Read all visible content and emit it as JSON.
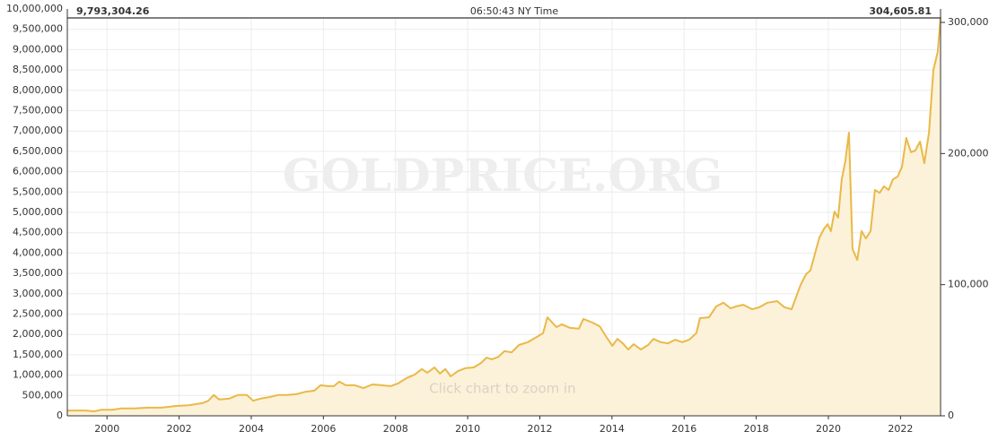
{
  "chart_data": {
    "type": "area",
    "header_left": "9,793,304.26",
    "header_center": "06:50:43 NY Time",
    "header_right": "304,605.81",
    "watermark": "GOLDPRICE.ORG",
    "hint": "Click chart to zoom in",
    "color": "#e9b949",
    "fill": "#fcf2d9",
    "grid": true,
    "x": [
      1998.91,
      1999.4,
      1999.65,
      1999.85,
      2000.15,
      2000.4,
      2000.77,
      2001.14,
      2001.52,
      2001.89,
      2002.26,
      2002.64,
      2002.81,
      2002.96,
      2003.11,
      2003.38,
      2003.63,
      2003.88,
      2004.05,
      2004.25,
      2004.5,
      2004.75,
      2005.0,
      2005.25,
      2005.5,
      2005.75,
      2005.92,
      2006.12,
      2006.29,
      2006.44,
      2006.62,
      2006.87,
      2007.11,
      2007.36,
      2007.61,
      2007.86,
      2008.06,
      2008.31,
      2008.53,
      2008.73,
      2008.88,
      2009.08,
      2009.23,
      2009.38,
      2009.53,
      2009.73,
      2009.93,
      2010.17,
      2010.37,
      2010.52,
      2010.67,
      2010.85,
      2011.02,
      2011.22,
      2011.42,
      2011.67,
      2011.92,
      2012.09,
      2012.21,
      2012.46,
      2012.61,
      2012.84,
      2013.08,
      2013.21,
      2013.46,
      2013.66,
      2013.83,
      2014.01,
      2014.15,
      2014.3,
      2014.45,
      2014.6,
      2014.8,
      2015.0,
      2015.15,
      2015.35,
      2015.55,
      2015.75,
      2015.95,
      2016.14,
      2016.34,
      2016.44,
      2016.69,
      2016.89,
      2017.09,
      2017.29,
      2017.44,
      2017.64,
      2017.89,
      2018.09,
      2018.31,
      2018.58,
      2018.78,
      2018.98,
      2019.23,
      2019.38,
      2019.5,
      2019.63,
      2019.75,
      2019.88,
      2019.98,
      2020.07,
      2020.17,
      2020.27,
      2020.37,
      2020.47,
      2020.57,
      2020.67,
      2020.8,
      2020.92,
      2021.04,
      2021.17,
      2021.29,
      2021.42,
      2021.54,
      2021.67,
      2021.79,
      2021.92,
      2022.04,
      2022.16,
      2022.29,
      2022.41,
      2022.54,
      2022.66,
      2022.79,
      2022.91,
      2023.03,
      2023.11
    ],
    "values": [
      130000,
      130000,
      110000,
      150000,
      150000,
      180000,
      180000,
      200000,
      200000,
      240000,
      260000,
      310000,
      370000,
      510000,
      400000,
      420000,
      510000,
      510000,
      370000,
      420000,
      460000,
      510000,
      510000,
      530000,
      590000,
      620000,
      750000,
      730000,
      730000,
      840000,
      750000,
      750000,
      680000,
      770000,
      750000,
      730000,
      790000,
      930000,
      1010000,
      1150000,
      1060000,
      1190000,
      1040000,
      1150000,
      970000,
      1100000,
      1170000,
      1190000,
      1300000,
      1430000,
      1390000,
      1450000,
      1590000,
      1560000,
      1740000,
      1810000,
      1940000,
      2030000,
      2420000,
      2180000,
      2250000,
      2160000,
      2140000,
      2380000,
      2290000,
      2200000,
      1960000,
      1720000,
      1890000,
      1780000,
      1630000,
      1760000,
      1630000,
      1740000,
      1890000,
      1810000,
      1780000,
      1870000,
      1810000,
      1870000,
      2030000,
      2400000,
      2420000,
      2690000,
      2780000,
      2640000,
      2690000,
      2730000,
      2620000,
      2670000,
      2780000,
      2820000,
      2670000,
      2620000,
      3220000,
      3480000,
      3570000,
      3990000,
      4380000,
      4600000,
      4710000,
      4540000,
      5020000,
      4870000,
      5810000,
      6260000,
      6960000,
      4100000,
      3830000,
      4540000,
      4360000,
      4540000,
      5550000,
      5480000,
      5640000,
      5550000,
      5810000,
      5880000,
      6120000,
      6830000,
      6480000,
      6520000,
      6740000,
      6210000,
      6960000,
      8500000,
      8940000,
      9793304.26
    ],
    "xlim": [
      1998.9,
      2023.11
    ],
    "xticks": [
      2000,
      2002,
      2004,
      2006,
      2008,
      2010,
      2012,
      2014,
      2016,
      2018,
      2020,
      2022
    ],
    "ylim": [
      0,
      10000000
    ],
    "yticks": [
      0,
      {
        "value": 500000,
        "label": "500,000"
      },
      {
        "value": 1000000,
        "label": "1,000,000"
      },
      {
        "value": 1500000,
        "label": "1,500,000"
      },
      {
        "value": 2000000,
        "label": "2,000,000"
      },
      {
        "value": 2500000,
        "label": "2,500,000"
      },
      {
        "value": 3000000,
        "label": "3,000,000"
      },
      {
        "value": 3500000,
        "label": "3,500,000"
      },
      {
        "value": 4000000,
        "label": "4,000,000"
      },
      {
        "value": 4500000,
        "label": "4,500,000"
      },
      {
        "value": 5000000,
        "label": "5,000,000"
      },
      {
        "value": 5500000,
        "label": "5,500,000"
      },
      {
        "value": 6000000,
        "label": "6,000,000"
      },
      {
        "value": 6500000,
        "label": "6,500,000"
      },
      {
        "value": 7000000,
        "label": "7,000,000"
      },
      {
        "value": 7500000,
        "label": "7,500,000"
      },
      {
        "value": 8000000,
        "label": "8,000,000"
      },
      {
        "value": 8500000,
        "label": "8,500,000"
      },
      {
        "value": 9000000,
        "label": "9,000,000"
      },
      {
        "value": 9500000,
        "label": "9,500,000"
      },
      {
        "value": 10000000,
        "label": "10,000,000"
      }
    ],
    "y2lim": [
      0,
      310250
    ],
    "y2ticks": [
      0,
      {
        "value": 100000,
        "label": "100,000"
      },
      {
        "value": 200000,
        "label": "200,000"
      },
      {
        "value": 300000,
        "label": "300,000"
      }
    ]
  }
}
